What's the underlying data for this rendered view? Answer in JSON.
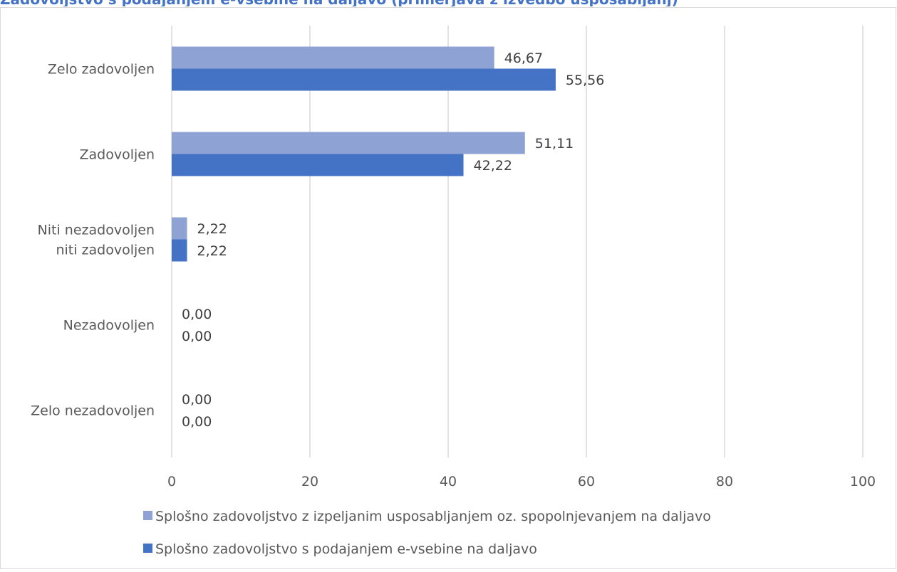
{
  "chart_data": {
    "type": "bar",
    "orientation": "horizontal",
    "title": "Zadovoljstvo s podajanjem e-vsebine na daljavo (primerjava z izvedbo usposabljanj)",
    "categories": [
      "Zelo zadovoljen",
      "Zadovoljen",
      "Niti nezadovoljen niti zadovoljen",
      "Nezadovoljen",
      "Zelo nezadovoljen"
    ],
    "series": [
      {
        "name": "Splošno zadovoljstvo z izpeljanim usposabljanjem oz. spopolnjevanjem na daljavo",
        "color": "#8FA2D4",
        "values": [
          46.67,
          51.11,
          2.22,
          0.0,
          0.0
        ],
        "labels": [
          "46,67",
          "51,11",
          "2,22",
          "0,00",
          "0,00"
        ]
      },
      {
        "name": "Splošno zadovoljstvo s podajanjem e-vsebine na daljavo",
        "color": "#4472C4",
        "values": [
          55.56,
          42.22,
          2.22,
          0.0,
          0.0
        ],
        "labels": [
          "55,56",
          "42,22",
          "2,22",
          "0,00",
          "0,00"
        ]
      }
    ],
    "xlim": [
      0,
      100
    ],
    "xticks": [
      0,
      20,
      40,
      60,
      80,
      100
    ],
    "grid": true,
    "legend_placement": "bottom",
    "xlabel": "",
    "ylabel": ""
  }
}
